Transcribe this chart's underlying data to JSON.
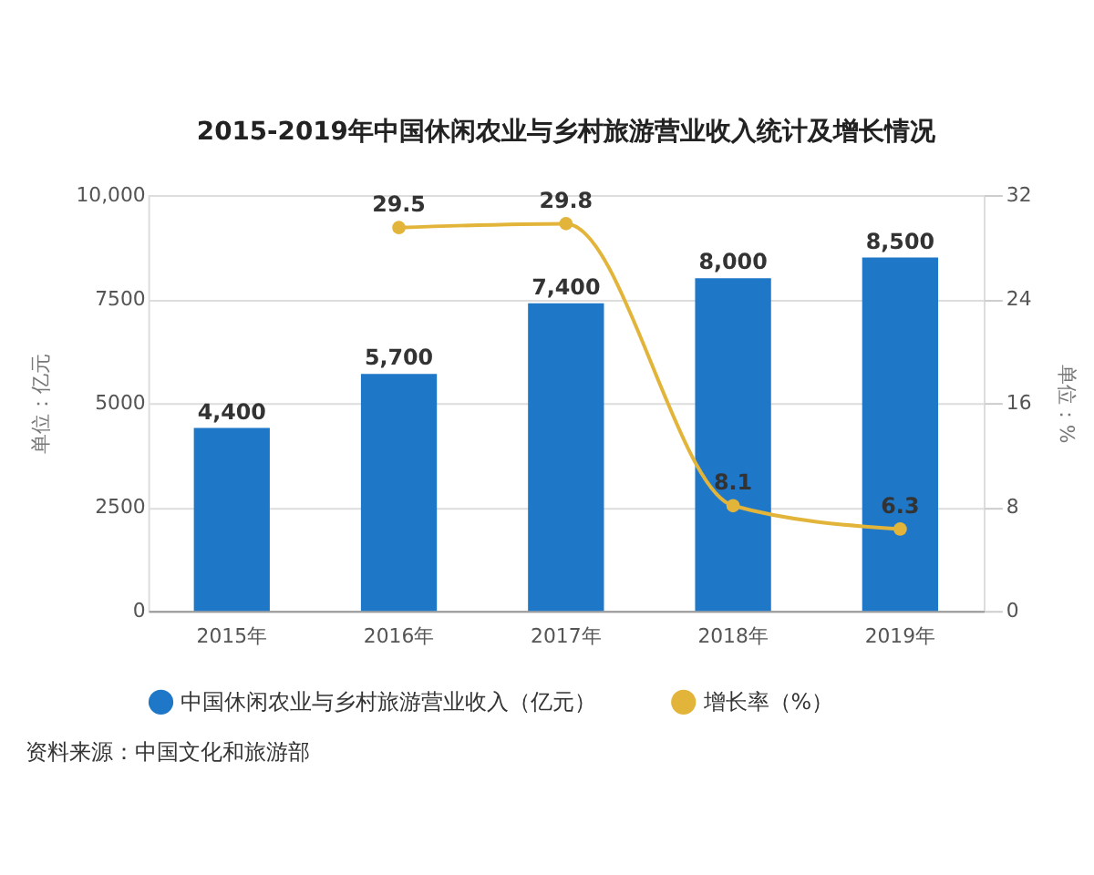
{
  "chart_data": {
    "type": "bar",
    "title": "2015-2019年中国休闲农业与乡村旅游营业收入统计及增长情况",
    "categories": [
      "2015年",
      "2016年",
      "2017年",
      "2018年",
      "2019年"
    ],
    "ylabel": "单位：亿元",
    "y2label": "单位：%",
    "ylim": [
      0,
      10000
    ],
    "yticks": [
      0,
      2500,
      5000,
      7500,
      {
        "value": 10000,
        "label": "10,000"
      }
    ],
    "y2lim": [
      0,
      32
    ],
    "y2ticks": [
      0,
      8,
      16,
      24,
      32
    ],
    "series": [
      {
        "name": "中国休闲农业与乡村旅游营业收入（亿元）",
        "color": "#1f77c8",
        "values": [
          4400,
          5700,
          7400,
          8000,
          8500
        ],
        "value_labels": [
          "4,400",
          "5,700",
          "7,400",
          "8,000",
          "8,500"
        ]
      },
      {
        "name": "增长率（%）",
        "type": "line",
        "axis": "y2",
        "color": "#e2b53a",
        "values": [
          null,
          29.5,
          29.8,
          8.1,
          6.3
        ],
        "value_labels": [
          null,
          "29.5",
          "29.8",
          "8.1",
          "6.3"
        ]
      }
    ],
    "marker": "circle",
    "line_style": "solid",
    "grid": "y",
    "legend": "bottom",
    "annotations": [
      "资料来源：中国文化和旅游部"
    ]
  }
}
